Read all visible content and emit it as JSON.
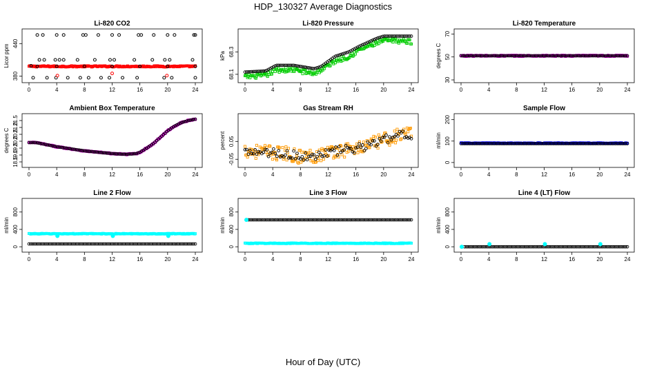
{
  "title": "HDP_130327  Average Diagnostics",
  "xlabel": "Hour of Day (UTC)",
  "chart_data": [
    {
      "type": "scatter",
      "title": "Li-820 CO2",
      "ylabel": "Licor ppm",
      "xlim": [
        0,
        24
      ],
      "ylim": [
        373,
        462
      ],
      "xticks": [
        "0",
        "4",
        "8",
        "12",
        "16",
        "20",
        "24"
      ],
      "yticks": [
        380,
        440
      ],
      "points": [
        {
          "x": 1.2,
          "y": 456,
          "c": "#000000"
        },
        {
          "x": 2.0,
          "y": 456,
          "c": "#000000"
        },
        {
          "x": 4.0,
          "y": 456,
          "c": "#000000"
        },
        {
          "x": 5.0,
          "y": 456,
          "c": "#000000"
        },
        {
          "x": 7.8,
          "y": 456,
          "c": "#000000"
        },
        {
          "x": 8.2,
          "y": 456,
          "c": "#000000"
        },
        {
          "x": 10.0,
          "y": 456,
          "c": "#000000"
        },
        {
          "x": 12.0,
          "y": 456,
          "c": "#000000"
        },
        {
          "x": 13.0,
          "y": 456,
          "c": "#000000"
        },
        {
          "x": 15.8,
          "y": 456,
          "c": "#000000"
        },
        {
          "x": 16.2,
          "y": 456,
          "c": "#000000"
        },
        {
          "x": 18.0,
          "y": 456,
          "c": "#000000"
        },
        {
          "x": 20.0,
          "y": 456,
          "c": "#000000"
        },
        {
          "x": 21.0,
          "y": 456,
          "c": "#000000"
        },
        {
          "x": 23.8,
          "y": 456,
          "c": "#000000"
        },
        {
          "x": 24.0,
          "y": 456,
          "c": "#000000"
        },
        {
          "x": 1.5,
          "y": 410,
          "c": "#000000"
        },
        {
          "x": 2.2,
          "y": 410,
          "c": "#000000"
        },
        {
          "x": 3.8,
          "y": 410,
          "c": "#000000"
        },
        {
          "x": 4.4,
          "y": 410,
          "c": "#000000"
        },
        {
          "x": 5.0,
          "y": 410,
          "c": "#000000"
        },
        {
          "x": 7.0,
          "y": 410,
          "c": "#000000"
        },
        {
          "x": 9.5,
          "y": 410,
          "c": "#000000"
        },
        {
          "x": 11.7,
          "y": 410,
          "c": "#000000"
        },
        {
          "x": 12.3,
          "y": 410,
          "c": "#000000"
        },
        {
          "x": 15.2,
          "y": 410,
          "c": "#000000"
        },
        {
          "x": 17.8,
          "y": 410,
          "c": "#000000"
        },
        {
          "x": 19.6,
          "y": 410,
          "c": "#000000"
        },
        {
          "x": 20.3,
          "y": 410,
          "c": "#000000"
        },
        {
          "x": 23.6,
          "y": 410,
          "c": "#000000"
        },
        {
          "x": 0.6,
          "y": 377,
          "c": "#000000"
        },
        {
          "x": 2.6,
          "y": 377,
          "c": "#000000"
        },
        {
          "x": 3.9,
          "y": 377,
          "c": "#000000"
        },
        {
          "x": 5.6,
          "y": 377,
          "c": "#000000"
        },
        {
          "x": 7.4,
          "y": 377,
          "c": "#000000"
        },
        {
          "x": 8.6,
          "y": 377,
          "c": "#000000"
        },
        {
          "x": 10.4,
          "y": 377,
          "c": "#000000"
        },
        {
          "x": 11.6,
          "y": 377,
          "c": "#000000"
        },
        {
          "x": 13.5,
          "y": 377,
          "c": "#000000"
        },
        {
          "x": 15.6,
          "y": 377,
          "c": "#000000"
        },
        {
          "x": 19.5,
          "y": 377,
          "c": "#000000"
        },
        {
          "x": 20.6,
          "y": 377,
          "c": "#000000"
        },
        {
          "x": 24.0,
          "y": 377,
          "c": "#000000"
        },
        {
          "x": 4.1,
          "y": 381,
          "c": "#ff0000"
        },
        {
          "x": 12.0,
          "y": 385,
          "c": "#ff0000"
        },
        {
          "x": 19.9,
          "y": 381,
          "c": "#ff0000"
        },
        {
          "x": 0.3,
          "y": 399,
          "c": "#000000"
        },
        {
          "x": 1.2,
          "y": 398,
          "c": "#000000"
        },
        {
          "x": 4.0,
          "y": 398,
          "c": "#000000"
        },
        {
          "x": 8.0,
          "y": 398,
          "c": "#000000"
        },
        {
          "x": 12.0,
          "y": 398,
          "c": "#000000"
        },
        {
          "x": 16.0,
          "y": 398,
          "c": "#000000"
        },
        {
          "x": 20.0,
          "y": 398,
          "c": "#000000"
        },
        {
          "x": 24.0,
          "y": 398,
          "c": "#000000"
        }
      ],
      "bands": [
        {
          "color": "#ff0000",
          "x0": 0,
          "x1": 24,
          "yMid": 398,
          "jitter": 1.2
        }
      ]
    },
    {
      "type": "scatter",
      "title": "Li-820 Pressure",
      "ylabel": "kPa",
      "xlim": [
        0,
        24
      ],
      "ylim": [
        68.05,
        68.48
      ],
      "xticks": [
        "0",
        "4",
        "8",
        "12",
        "16",
        "20",
        "24"
      ],
      "yticks": [
        68.1,
        68.3
      ],
      "yticklabels": [
        "68.1",
        "68.3"
      ],
      "bands": [
        {
          "color": "#00cc00",
          "curve": [
            [
              0,
              68.08
            ],
            [
              3,
              68.09
            ],
            [
              4.5,
              68.14
            ],
            [
              7,
              68.14
            ],
            [
              8,
              68.13
            ],
            [
              10,
              68.11
            ],
            [
              11,
              68.14
            ],
            [
              13,
              68.22
            ],
            [
              15,
              68.26
            ],
            [
              16.5,
              68.32
            ],
            [
              19,
              68.38
            ],
            [
              20,
              68.4
            ],
            [
              22,
              68.4
            ],
            [
              24,
              68.39
            ]
          ],
          "jitter": 0.022
        }
      ],
      "dots": {
        "color": "#000000",
        "curve": [
          [
            0,
            68.12
          ],
          [
            3,
            68.13
          ],
          [
            4.5,
            68.18
          ],
          [
            7,
            68.18
          ],
          [
            8,
            68.17
          ],
          [
            10,
            68.15
          ],
          [
            11,
            68.17
          ],
          [
            13,
            68.26
          ],
          [
            15,
            68.3
          ],
          [
            16.5,
            68.35
          ],
          [
            19,
            68.42
          ],
          [
            20,
            68.44
          ],
          [
            22,
            68.44
          ],
          [
            24,
            68.44
          ]
        ],
        "count": 100
      }
    },
    {
      "type": "scatter",
      "title": "Li-820 Temperature",
      "ylabel": "degrees C",
      "xlim": [
        0,
        24
      ],
      "ylim": [
        30,
        72
      ],
      "xticks": [
        "0",
        "4",
        "8",
        "12",
        "16",
        "20",
        "24"
      ],
      "yticks": [
        30,
        50,
        70
      ],
      "dots": {
        "color": "#000000",
        "curve": [
          [
            0,
            51
          ],
          [
            24,
            51
          ]
        ],
        "count": 100
      },
      "bands": [
        {
          "color": "#cc00cc",
          "curve": [
            [
              0,
              51
            ],
            [
              24,
              51
            ]
          ],
          "jitter": 0.6
        }
      ]
    },
    {
      "type": "scatter",
      "title": "Ambient Box Temperature",
      "ylabel": "degrees C",
      "xlim": [
        0,
        24
      ],
      "ylim": [
        18.3,
        21.8
      ],
      "xticks": [
        "0",
        "4",
        "8",
        "12",
        "16",
        "20",
        "24"
      ],
      "yticks": [
        18.5,
        19.0,
        19.5,
        20.0,
        20.5,
        21.0,
        21.5
      ],
      "yticklabels": [
        "18.5",
        "19.0",
        "19.5",
        "20.0",
        "20.5",
        "21.0",
        "21.5"
      ],
      "bands": [
        {
          "color": "#cc00cc",
          "curve": [
            [
              0,
              19.9
            ],
            [
              1,
              19.9
            ],
            [
              2,
              19.8
            ],
            [
              4,
              19.6
            ],
            [
              6,
              19.45
            ],
            [
              8,
              19.3
            ],
            [
              10,
              19.2
            ],
            [
              12,
              19.1
            ],
            [
              14,
              19.05
            ],
            [
              15.5,
              19.1
            ],
            [
              16,
              19.2
            ],
            [
              17,
              19.5
            ],
            [
              18,
              19.85
            ],
            [
              19,
              20.3
            ],
            [
              20,
              20.75
            ],
            [
              21,
              21.1
            ],
            [
              22,
              21.35
            ],
            [
              23,
              21.5
            ],
            [
              24,
              21.6
            ]
          ],
          "jitter": 0.04
        }
      ],
      "dots": {
        "color": "#000000",
        "curve": [
          [
            0,
            19.9
          ],
          [
            1,
            19.9
          ],
          [
            2,
            19.8
          ],
          [
            4,
            19.6
          ],
          [
            6,
            19.45
          ],
          [
            8,
            19.3
          ],
          [
            10,
            19.2
          ],
          [
            12,
            19.1
          ],
          [
            14,
            19.05
          ],
          [
            15.5,
            19.1
          ],
          [
            16,
            19.2
          ],
          [
            17,
            19.5
          ],
          [
            18,
            19.85
          ],
          [
            19,
            20.3
          ],
          [
            20,
            20.75
          ],
          [
            21,
            21.1
          ],
          [
            22,
            21.35
          ],
          [
            23,
            21.5
          ],
          [
            24,
            21.6
          ]
        ],
        "count": 100
      }
    },
    {
      "type": "scatter",
      "title": "Gas Stream RH",
      "ylabel": "percent",
      "xlim": [
        0,
        24
      ],
      "ylim": [
        -0.08,
        0.19
      ],
      "xticks": [
        "0",
        "4",
        "8",
        "12",
        "16",
        "20",
        "24"
      ],
      "yticks": [
        -0.05,
        0.05
      ],
      "yticklabels": [
        "-0.05",
        "0.05"
      ],
      "bands": [
        {
          "color": "#ff9900",
          "curve": [
            [
              0,
              0.0
            ],
            [
              3,
              -0.01
            ],
            [
              6,
              -0.02
            ],
            [
              8,
              -0.035
            ],
            [
              10,
              -0.03
            ],
            [
              12,
              -0.01
            ],
            [
              14,
              0.0
            ],
            [
              16,
              0.01
            ],
            [
              18,
              0.03
            ],
            [
              20,
              0.06
            ],
            [
              22,
              0.08
            ],
            [
              24,
              0.09
            ]
          ],
          "jitter": 0.04
        }
      ],
      "dots": {
        "color": "#000000",
        "curve": [
          [
            0,
            0.0
          ],
          [
            3,
            -0.01
          ],
          [
            6,
            -0.02
          ],
          [
            8,
            -0.035
          ],
          [
            10,
            -0.03
          ],
          [
            12,
            -0.01
          ],
          [
            14,
            0.0
          ],
          [
            16,
            0.01
          ],
          [
            18,
            0.03
          ],
          [
            20,
            0.06
          ],
          [
            22,
            0.08
          ],
          [
            24,
            0.09
          ]
        ],
        "count": 100,
        "jitter": 0.025
      }
    },
    {
      "type": "scatter",
      "title": "Sample Flow",
      "ylabel": "ml/min",
      "xlim": [
        0,
        24
      ],
      "ylim": [
        -10,
        215
      ],
      "xticks": [
        "0",
        "4",
        "8",
        "12",
        "16",
        "20",
        "24"
      ],
      "yticks": [
        0,
        100,
        200
      ],
      "bands": [
        {
          "color": "#0000ff",
          "curve": [
            [
              0,
              90
            ],
            [
              24,
              90
            ]
          ],
          "jitter": 2
        }
      ],
      "dots": {
        "color": "#000000",
        "curve": [
          [
            0,
            88
          ],
          [
            24,
            88
          ]
        ],
        "count": 100
      }
    },
    {
      "type": "scatter",
      "title": "Line 2 Flow",
      "ylabel": "ml/min",
      "xlim": [
        0,
        24
      ],
      "ylim": [
        -60,
        1050
      ],
      "xticks": [
        "0",
        "4",
        "8",
        "12",
        "16",
        "20",
        "24"
      ],
      "yticks": [
        0,
        400,
        800
      ],
      "bands": [
        {
          "color": "#00ffff",
          "curve": [
            [
              0,
              300
            ],
            [
              24,
              300
            ]
          ],
          "jitter": 8
        }
      ],
      "dots": {
        "color": "#000000",
        "curve": [
          [
            0,
            65
          ],
          [
            24,
            65
          ]
        ],
        "count": 100
      },
      "extra": [
        {
          "x": 4.1,
          "y": 250,
          "c": "#00ffff"
        },
        {
          "x": 12.1,
          "y": 250,
          "c": "#00ffff"
        },
        {
          "x": 20.1,
          "y": 250,
          "c": "#00ffff"
        }
      ]
    },
    {
      "type": "scatter",
      "title": "Line 3 Flow",
      "ylabel": "ml/min",
      "xlim": [
        0,
        24
      ],
      "ylim": [
        -60,
        1050
      ],
      "xticks": [
        "0",
        "4",
        "8",
        "12",
        "16",
        "20",
        "24"
      ],
      "yticks": [
        0,
        400,
        800
      ],
      "bands": [
        {
          "color": "#00ffff",
          "curve": [
            [
              0,
              80
            ],
            [
              24,
              80
            ]
          ],
          "jitter": 8
        }
      ],
      "dots": {
        "color": "#000000",
        "curve": [
          [
            0.5,
            620
          ],
          [
            24,
            620
          ]
        ],
        "count": 100
      },
      "extra": [
        {
          "x": 0.2,
          "y": 620,
          "c": "#00ffff"
        }
      ]
    },
    {
      "type": "scatter",
      "title": "Line 4 (LT) Flow",
      "ylabel": "ml/min",
      "xlim": [
        0,
        24
      ],
      "ylim": [
        -60,
        1050
      ],
      "xticks": [
        "0",
        "4",
        "8",
        "12",
        "16",
        "20",
        "24"
      ],
      "yticks": [
        0,
        400,
        800
      ],
      "dots": {
        "color": "#000000",
        "curve": [
          [
            0.5,
            0
          ],
          [
            24,
            0
          ]
        ],
        "count": 100
      },
      "extra": [
        {
          "x": 0.1,
          "y": 0,
          "c": "#00ffff"
        },
        {
          "x": 4.1,
          "y": 60,
          "c": "#00ffff"
        },
        {
          "x": 12.1,
          "y": 60,
          "c": "#00ffff"
        },
        {
          "x": 20.1,
          "y": 60,
          "c": "#00ffff"
        }
      ]
    }
  ]
}
